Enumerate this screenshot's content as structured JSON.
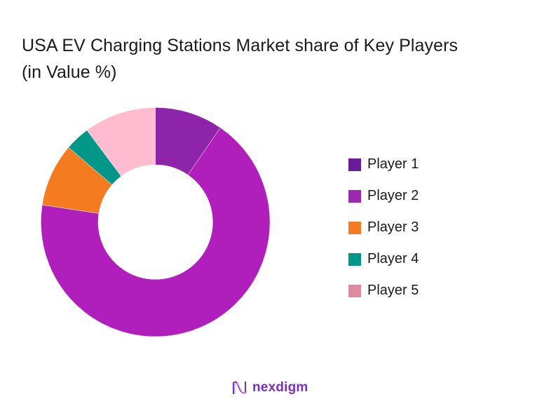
{
  "title": "USA EV Charging Stations Market share of Key Players (in Value %)",
  "chart_data": {
    "type": "pie",
    "variant": "donut",
    "title": "USA EV Charging Stations Market share of Key Players (in Value %)",
    "categories": [
      "Player 1",
      "Player 2",
      "Player 3",
      "Player 4",
      "Player 5"
    ],
    "values": [
      9.6,
      67.8,
      8.9,
      3.5,
      10.2
    ],
    "slice_colors": [
      "#8e24aa",
      "#b01fbb",
      "#f47b20",
      "#009688",
      "#ffbbd0"
    ],
    "legend_colors": [
      "#6a1b9a",
      "#9c27b0",
      "#f47b20",
      "#009688",
      "#e08aa0"
    ],
    "start_angle_deg": 0,
    "direction": "clockwise",
    "legend_position": "right",
    "center": [
      221.7,
      316.7
    ],
    "outer_radius": 163.4,
    "inner_radius": 81.7
  },
  "legend": [
    {
      "label": "Player 1"
    },
    {
      "label": "Player 2"
    },
    {
      "label": "Player 3"
    },
    {
      "label": "Player 4"
    },
    {
      "label": "Player 5"
    }
  ],
  "logo": {
    "text": "nexdigm"
  }
}
